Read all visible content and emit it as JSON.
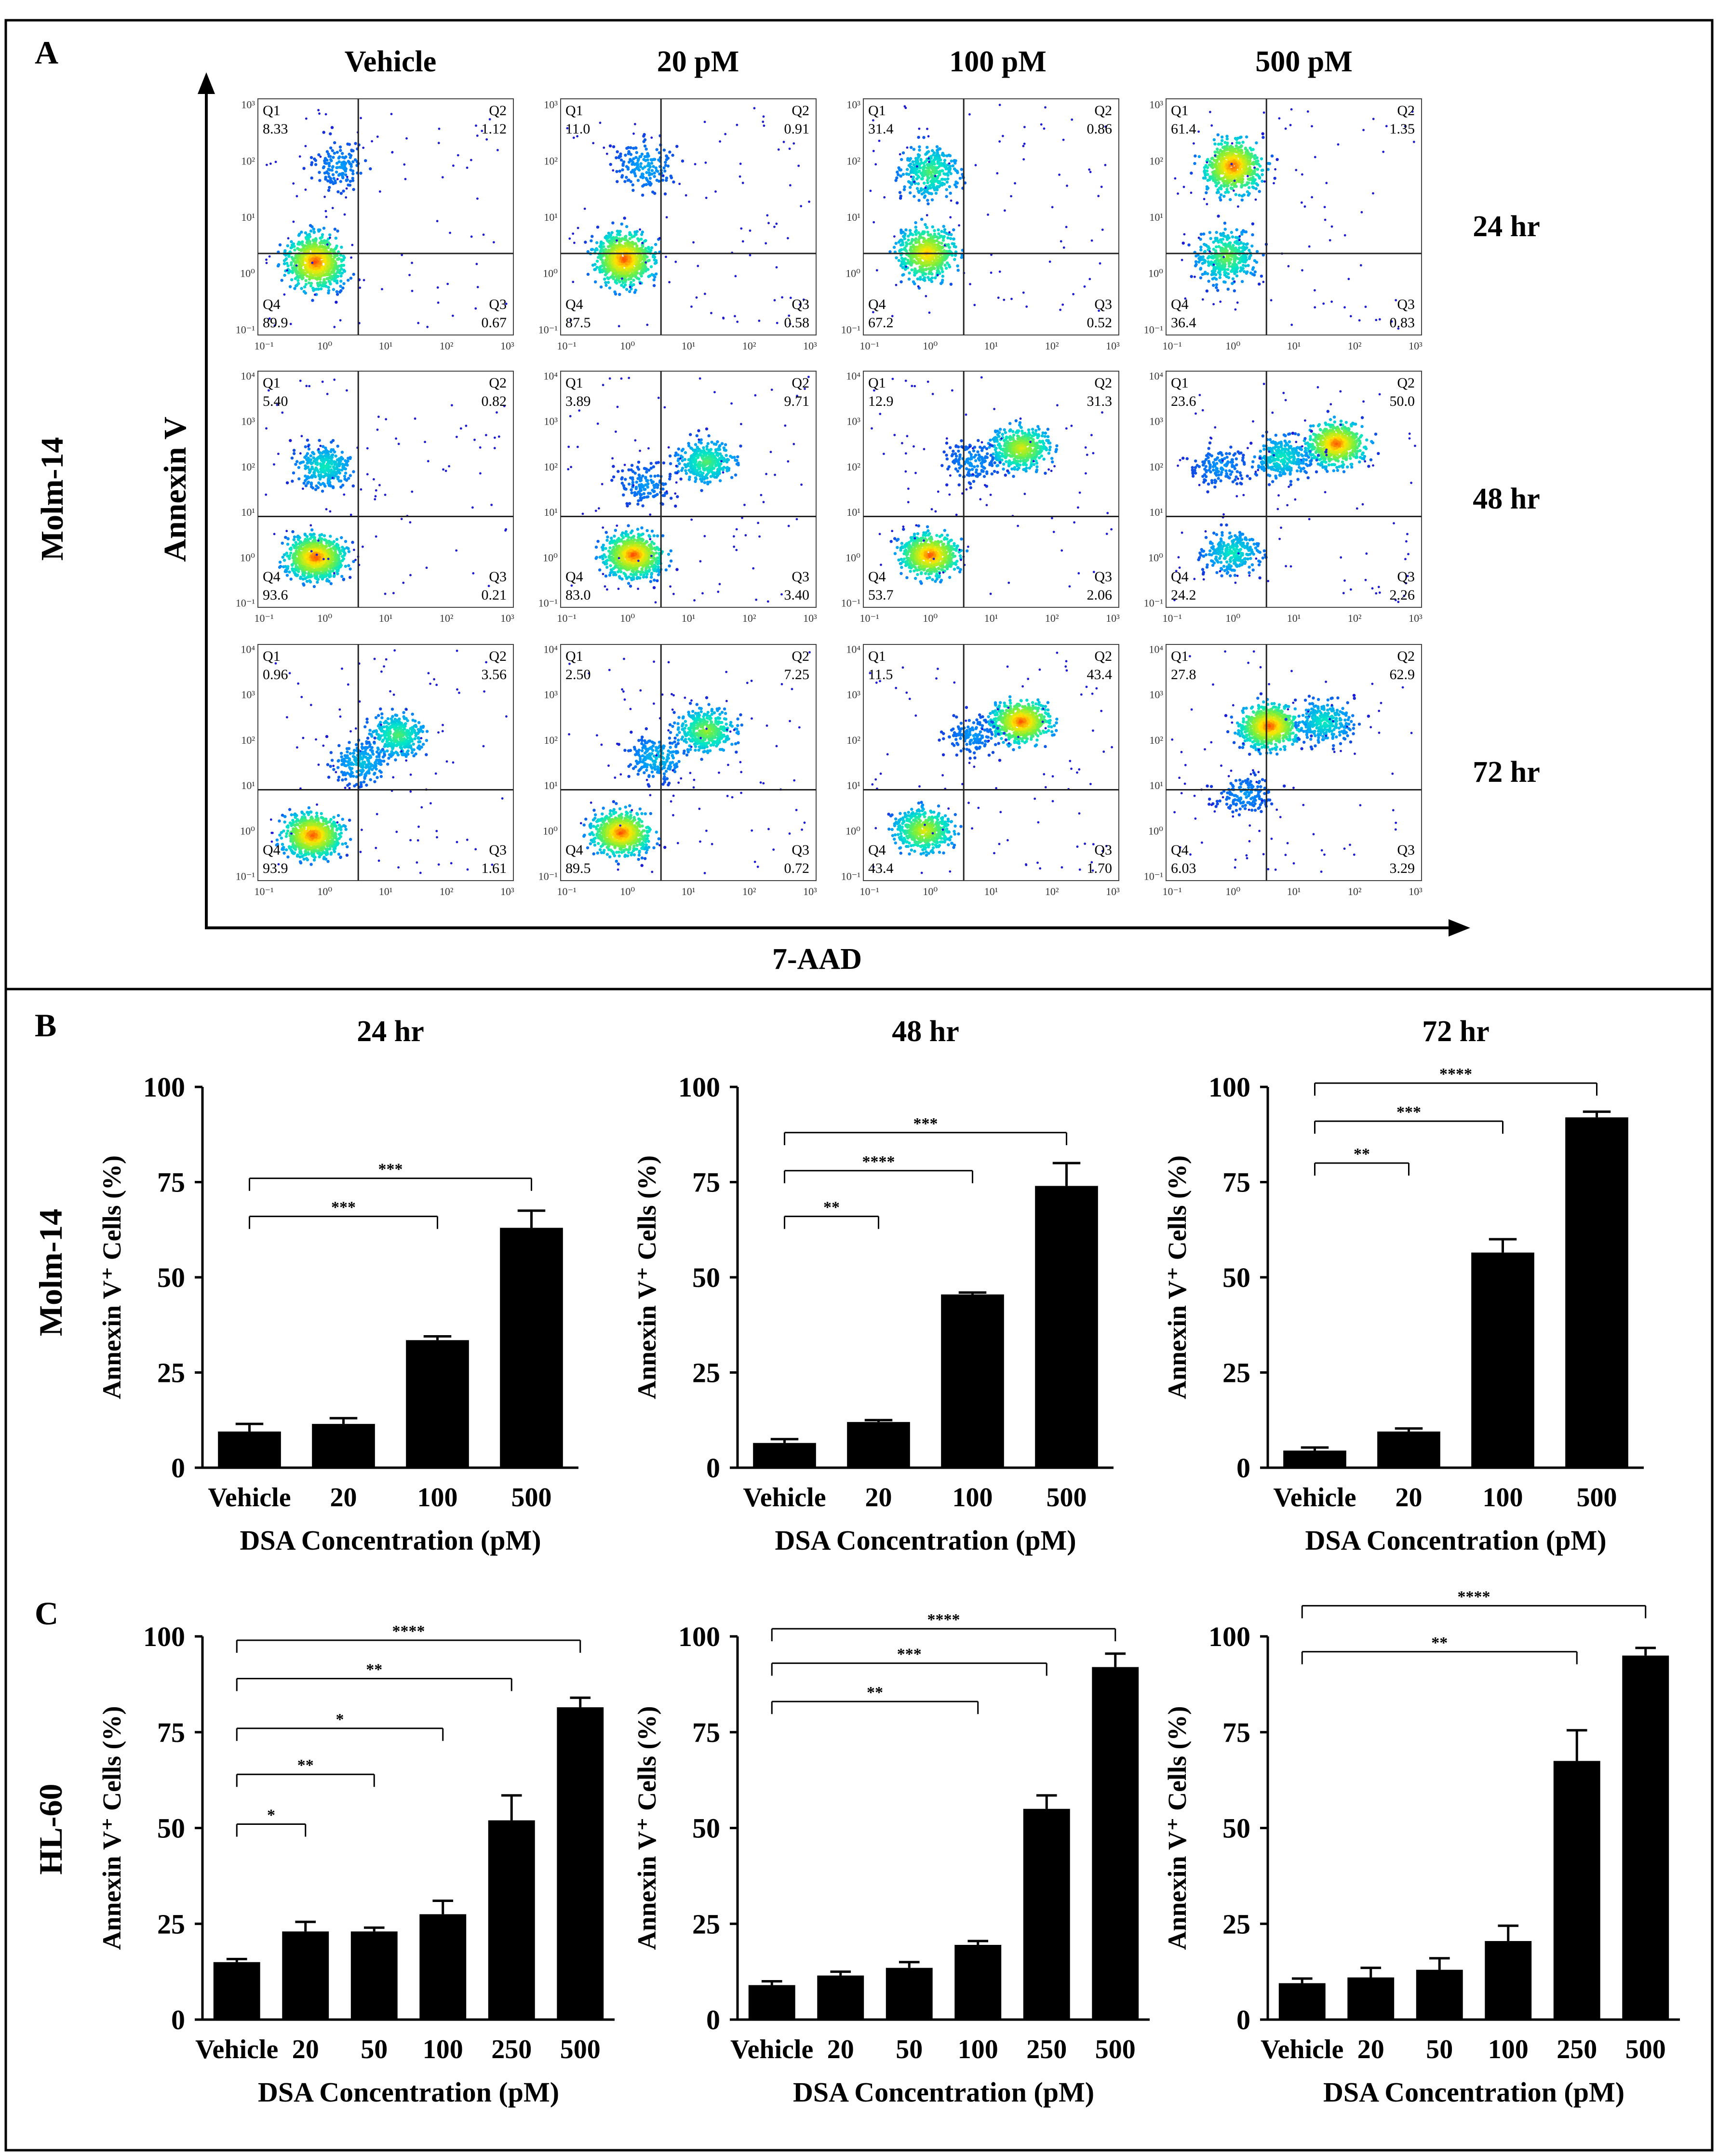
{
  "panel_labels": {
    "a": "A",
    "b": "B",
    "c": "C"
  },
  "panel_a": {
    "column_headers": [
      "Vehicle",
      "20 pM",
      "100 pM",
      "500 pM"
    ],
    "row_headers": [
      "24 hr",
      "48 hr",
      "72 hr"
    ],
    "cell_line": "Molm-14",
    "y_axis_title": "Annexin V",
    "x_axis_title": "7-AAD",
    "x_tick_labels": [
      "10⁻¹",
      "10⁰",
      "10¹",
      "10²",
      "10³"
    ],
    "y_tick_labels_24hr": [
      "10⁻¹",
      "10⁰",
      "10¹",
      "10²",
      "10³"
    ],
    "y_tick_labels_48_72hr": [
      "10⁻¹",
      "10⁰",
      "10¹",
      "10²",
      "10³",
      "10⁴"
    ],
    "quadrant_names": [
      "Q1",
      "Q2",
      "Q3",
      "Q4"
    ]
  },
  "colors": {
    "bar": "#000000",
    "density_low": "#1a1ad8",
    "density_high": "#ff2a00"
  },
  "chart_data": [
    {
      "type": "scatter",
      "panel": "A",
      "row": "24 hr",
      "column": "Vehicle",
      "gate_x": 0.55,
      "gate_y": 0.35,
      "q1": "8.33",
      "q2": "1.12",
      "q3": "0.67",
      "q4": "89.9",
      "clusters": [
        [
          -0.15,
          0.2,
          0.55
        ],
        [
          0.25,
          1.9,
          0.1
        ]
      ]
    },
    {
      "type": "scatter",
      "panel": "A",
      "row": "24 hr",
      "column": "20 pM",
      "gate_x": 0.55,
      "gate_y": 0.35,
      "q1": "11.0",
      "q2": "0.91",
      "q3": "0.58",
      "q4": "87.5",
      "clusters": [
        [
          -0.05,
          0.25,
          0.55
        ],
        [
          0.3,
          1.9,
          0.12
        ]
      ]
    },
    {
      "type": "scatter",
      "panel": "A",
      "row": "24 hr",
      "column": "100 pM",
      "gate_x": 0.55,
      "gate_y": 0.35,
      "q1": "31.4",
      "q2": "0.86",
      "q3": "0.52",
      "q4": "67.2",
      "clusters": [
        [
          -0.05,
          0.35,
          0.4
        ],
        [
          0.0,
          1.8,
          0.25
        ]
      ]
    },
    {
      "type": "scatter",
      "panel": "A",
      "row": "24 hr",
      "column": "500 pM",
      "gate_x": 0.55,
      "gate_y": 0.35,
      "q1": "61.4",
      "q2": "1.35",
      "q3": "0.83",
      "q4": "36.4",
      "clusters": [
        [
          -0.1,
          0.3,
          0.28
        ],
        [
          0.0,
          1.9,
          0.45
        ]
      ]
    },
    {
      "type": "scatter",
      "panel": "A",
      "row": "48 hr",
      "column": "Vehicle",
      "gate_x": 0.55,
      "gate_y": 0.9,
      "q1": "5.40",
      "q2": "0.82",
      "q3": "0.21",
      "q4": "93.6",
      "clusters": [
        [
          -0.15,
          0.0,
          0.65
        ],
        [
          0.0,
          2.0,
          0.2
        ]
      ]
    },
    {
      "type": "scatter",
      "panel": "A",
      "row": "48 hr",
      "column": "20 pM",
      "gate_x": 0.55,
      "gate_y": 0.9,
      "q1": "3.89",
      "q2": "9.71",
      "q3": "3.40",
      "q4": "83.0",
      "clusters": [
        [
          0.1,
          0.05,
          0.55
        ],
        [
          1.3,
          2.1,
          0.25
        ],
        [
          0.3,
          1.6,
          0.1
        ]
      ]
    },
    {
      "type": "scatter",
      "panel": "A",
      "row": "48 hr",
      "column": "100 pM",
      "gate_x": 0.55,
      "gate_y": 0.9,
      "q1": "12.9",
      "q2": "31.3",
      "q3": "2.06",
      "q4": "53.7",
      "clusters": [
        [
          0.0,
          0.05,
          0.45
        ],
        [
          1.5,
          2.4,
          0.35
        ],
        [
          0.7,
          2.1,
          0.1
        ]
      ]
    },
    {
      "type": "scatter",
      "panel": "A",
      "row": "48 hr",
      "column": "500 pM",
      "gate_x": 0.55,
      "gate_y": 0.9,
      "q1": "23.6",
      "q2": "50.0",
      "q3": "2.26",
      "q4": "24.2",
      "clusters": [
        [
          0.0,
          0.1,
          0.2
        ],
        [
          1.7,
          2.5,
          0.45
        ],
        [
          0.8,
          2.2,
          0.2
        ],
        [
          -0.2,
          2.0,
          0.1
        ]
      ]
    },
    {
      "type": "scatter",
      "panel": "A",
      "row": "72 hr",
      "column": "Vehicle",
      "gate_x": 0.55,
      "gate_y": 0.9,
      "q1": "0.96",
      "q2": "3.56",
      "q3": "1.61",
      "q4": "93.9",
      "clusters": [
        [
          -0.2,
          -0.1,
          0.55
        ],
        [
          1.2,
          2.1,
          0.25
        ],
        [
          0.6,
          1.5,
          0.15
        ]
      ]
    },
    {
      "type": "scatter",
      "panel": "A",
      "row": "72 hr",
      "column": "20 pM",
      "gate_x": 0.55,
      "gate_y": 0.9,
      "q1": "2.50",
      "q2": "7.25",
      "q3": "0.72",
      "q4": "89.5",
      "clusters": [
        [
          -0.1,
          -0.05,
          0.5
        ],
        [
          1.3,
          2.2,
          0.3
        ],
        [
          0.5,
          1.6,
          0.15
        ]
      ]
    },
    {
      "type": "scatter",
      "panel": "A",
      "row": "72 hr",
      "column": "100 pM",
      "gate_x": 0.55,
      "gate_y": 0.9,
      "q1": "11.5",
      "q2": "43.4",
      "q3": "1.70",
      "q4": "43.4",
      "clusters": [
        [
          -0.1,
          0.0,
          0.35
        ],
        [
          1.5,
          2.4,
          0.45
        ],
        [
          0.7,
          2.1,
          0.1
        ]
      ]
    },
    {
      "type": "scatter",
      "panel": "A",
      "row": "72 hr",
      "column": "500 pM",
      "gate_x": 0.55,
      "gate_y": 0.9,
      "q1": "27.8",
      "q2": "62.9",
      "q3": "3.29",
      "q4": "6.03",
      "clusters": [
        [
          0.6,
          2.3,
          0.55
        ],
        [
          1.5,
          2.4,
          0.2
        ],
        [
          0.2,
          0.8,
          0.1
        ]
      ]
    },
    {
      "type": "bar",
      "panel": "B",
      "cell_line": "Molm-14",
      "title": "24 hr",
      "xlabel": "DSA Concentration (pM)",
      "ylabel": "Annexin V⁺ Cells (%)",
      "ylim": [
        0,
        100
      ],
      "yticks": [
        0,
        25,
        50,
        75,
        100
      ],
      "categories": [
        "Vehicle",
        "20",
        "100",
        "500"
      ],
      "values": [
        9.5,
        11.5,
        33.5,
        63
      ],
      "errors": [
        2,
        1.5,
        1,
        4.5
      ],
      "significance": [
        {
          "label": "***",
          "from": 0,
          "to": 2,
          "y": 66
        },
        {
          "label": "***",
          "from": 0,
          "to": 3,
          "y": 76
        }
      ]
    },
    {
      "type": "bar",
      "panel": "B",
      "cell_line": "Molm-14",
      "title": "48 hr",
      "xlabel": "DSA Concentration (pM)",
      "ylabel": "Annexin V⁺ Cells (%)",
      "ylim": [
        0,
        100
      ],
      "yticks": [
        0,
        25,
        50,
        75,
        100
      ],
      "categories": [
        "Vehicle",
        "20",
        "100",
        "500"
      ],
      "values": [
        6.5,
        12,
        45.5,
        74
      ],
      "errors": [
        1,
        0.5,
        0.5,
        6
      ],
      "significance": [
        {
          "label": "**",
          "from": 0,
          "to": 1,
          "y": 66
        },
        {
          "label": "****",
          "from": 0,
          "to": 2,
          "y": 78
        },
        {
          "label": "***",
          "from": 0,
          "to": 3,
          "y": 88
        }
      ]
    },
    {
      "type": "bar",
      "panel": "B",
      "cell_line": "Molm-14",
      "title": "72 hr",
      "xlabel": "DSA Concentration (pM)",
      "ylabel": "Annexin V⁺ Cells (%)",
      "ylim": [
        0,
        100
      ],
      "yticks": [
        0,
        25,
        50,
        75,
        100
      ],
      "categories": [
        "Vehicle",
        "20",
        "100",
        "500"
      ],
      "values": [
        4.5,
        9.5,
        56.5,
        92
      ],
      "errors": [
        0.8,
        0.8,
        3.5,
        1.5
      ],
      "significance": [
        {
          "label": "**",
          "from": 0,
          "to": 1,
          "y": 80
        },
        {
          "label": "***",
          "from": 0,
          "to": 2,
          "y": 91
        },
        {
          "label": "****",
          "from": 0,
          "to": 3,
          "y": 101
        }
      ]
    },
    {
      "type": "bar",
      "panel": "C",
      "cell_line": "HL-60",
      "title": "",
      "xlabel": "DSA Concentration (pM)",
      "ylabel": "Annexin V⁺ Cells (%)",
      "ylim": [
        0,
        100
      ],
      "yticks": [
        0,
        25,
        50,
        75,
        100
      ],
      "categories": [
        "Vehicle",
        "20",
        "50",
        "100",
        "250",
        "500"
      ],
      "values": [
        15,
        23,
        23,
        27.5,
        52,
        81.5
      ],
      "errors": [
        0.8,
        2.5,
        1,
        3.5,
        6.5,
        2.5
      ],
      "significance": [
        {
          "label": "*",
          "from": 0,
          "to": 1,
          "y": 51
        },
        {
          "label": "**",
          "from": 0,
          "to": 2,
          "y": 64
        },
        {
          "label": "*",
          "from": 0,
          "to": 3,
          "y": 76
        },
        {
          "label": "**",
          "from": 0,
          "to": 4,
          "y": 89
        },
        {
          "label": "****",
          "from": 0,
          "to": 5,
          "y": 99
        }
      ]
    },
    {
      "type": "bar",
      "panel": "C",
      "cell_line": "HL-60",
      "title": "",
      "xlabel": "DSA Concentration (pM)",
      "ylabel": "Annexin V⁺ Cells (%)",
      "ylim": [
        0,
        100
      ],
      "yticks": [
        0,
        25,
        50,
        75,
        100
      ],
      "categories": [
        "Vehicle",
        "20",
        "50",
        "100",
        "250",
        "500"
      ],
      "values": [
        9,
        11.5,
        13.5,
        19.5,
        55,
        92
      ],
      "errors": [
        1,
        1,
        1.5,
        1,
        3.5,
        3.5
      ],
      "significance": [
        {
          "label": "**",
          "from": 0,
          "to": 3,
          "y": 83
        },
        {
          "label": "***",
          "from": 0,
          "to": 4,
          "y": 93
        },
        {
          "label": "****",
          "from": 0,
          "to": 5,
          "y": 102
        }
      ]
    },
    {
      "type": "bar",
      "panel": "C",
      "cell_line": "HL-60",
      "title": "",
      "xlabel": "DSA Concentration (pM)",
      "ylabel": "Annexin V⁺ Cells (%)",
      "ylim": [
        0,
        100
      ],
      "yticks": [
        0,
        25,
        50,
        75,
        100
      ],
      "categories": [
        "Vehicle",
        "20",
        "50",
        "100",
        "250",
        "500"
      ],
      "values": [
        9.5,
        11,
        13,
        20.5,
        67.5,
        95
      ],
      "errors": [
        1.2,
        2.5,
        3,
        4,
        8,
        2
      ],
      "significance": [
        {
          "label": "**",
          "from": 0,
          "to": 4,
          "y": 96
        },
        {
          "label": "****",
          "from": 0,
          "to": 5,
          "y": 108
        }
      ]
    }
  ]
}
